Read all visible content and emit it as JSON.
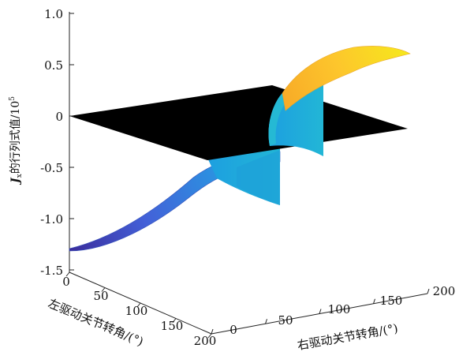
{
  "chart_data": {
    "type": "surface3d",
    "z_axis": {
      "label_main": "J",
      "label_sub": "x",
      "label_rest": "的行列式值/10",
      "label_exp": "5",
      "ticks": [
        "1.0",
        "0.5",
        "0",
        "-0.5",
        "-1.0",
        "-1.5"
      ],
      "tick_values": [
        1.0,
        0.5,
        0,
        -0.5,
        -1.0,
        -1.5
      ],
      "range": [
        -1.5,
        1.0
      ]
    },
    "x_axis": {
      "label": "左驱动关节转角/(°)",
      "ticks": [
        "0",
        "50",
        "100",
        "150",
        "200"
      ],
      "tick_values": [
        0,
        50,
        100,
        150,
        200
      ],
      "range": [
        0,
        200
      ]
    },
    "y_axis": {
      "label": "右驱动关节转角/(°)",
      "ticks": [
        "0",
        "50",
        "100",
        "150",
        "200"
      ],
      "tick_values": [
        0,
        50,
        100,
        150,
        200
      ],
      "range": [
        0,
        200
      ]
    },
    "surfaces": [
      {
        "kind": "plane",
        "z": 0,
        "color": "#000000"
      },
      {
        "kind": "determinant",
        "z_range": [
          -1.3,
          0.72
        ],
        "colormap": "parula"
      }
    ]
  }
}
